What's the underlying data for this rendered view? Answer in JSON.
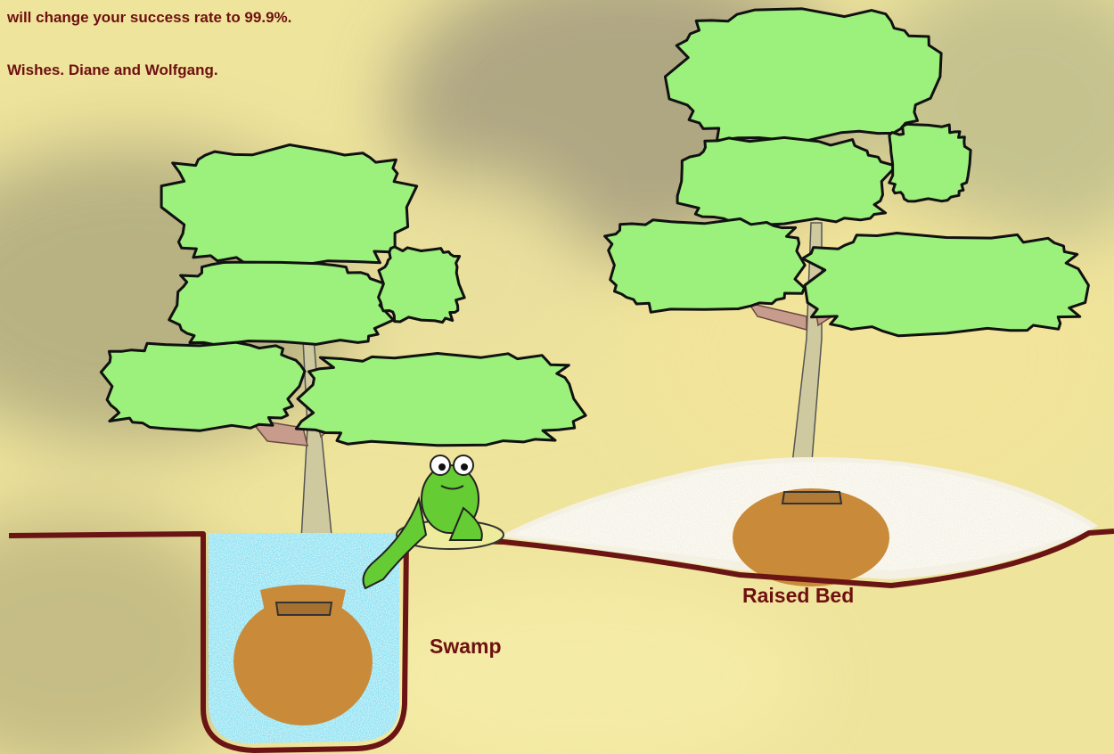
{
  "text": {
    "lines": [
      "will change your success rate to 99.9%.",
      "Wishes.  Diane and Wolfgang."
    ]
  },
  "illustration": {
    "labels": {
      "left": "Swamp",
      "right": "Raised Bed"
    }
  }
}
